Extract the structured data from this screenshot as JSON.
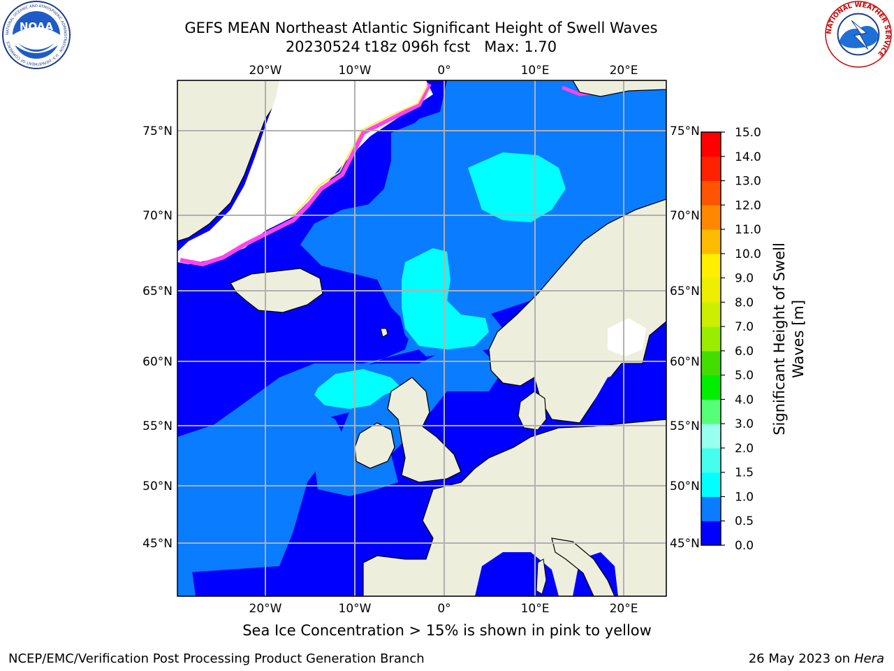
{
  "header": {
    "title": "GEFS MEAN Northeast Atlantic Significant Height of Swell Waves",
    "subtitle": "20230524 t18z 096h fcst   Max: 1.70"
  },
  "logos": {
    "left": {
      "text": "NOAA",
      "ring_text": "NATIONAL OCEANIC AND ATMOSPHERIC ADMINISTRATION · U.S. DEPARTMENT OF COMMERCE"
    },
    "right": {
      "ring_text": "NATIONAL WEATHER SERVICE"
    }
  },
  "map": {
    "lon_labels": [
      "20°W",
      "10°W",
      "0°",
      "10°E",
      "20°E"
    ],
    "lat_labels": [
      "75°N",
      "70°N",
      "65°N",
      "60°N",
      "55°N",
      "50°N",
      "45°N"
    ],
    "colors": {
      "ocean_low": "#0000ff",
      "ocean_mid": "#0a7cff",
      "ocean_high": "#00ffff",
      "land": "#eeeedd",
      "ice": "#ffffff",
      "ice_edge": "#ff44ee",
      "grid": "#b0b0b0"
    }
  },
  "colorbar": {
    "label": "Significant Height of Swell Waves [m]",
    "label_line1": "Significant Height of Swell",
    "label_line2": "Waves [m]",
    "ticks": [
      "15.0",
      "14.0",
      "13.0",
      "12.0",
      "11.0",
      "10.0",
      "9.0",
      "8.0",
      "7.0",
      "6.0",
      "5.0",
      "4.0",
      "3.0",
      "2.0",
      "1.5",
      "1.0",
      "0.5",
      "0.0"
    ],
    "colors_bottom_to_top": [
      "#0000ff",
      "#0a7cff",
      "#00ffff",
      "#44ffee",
      "#99ffee",
      "#55ff77",
      "#00ee00",
      "#44dd00",
      "#99ee00",
      "#ccee00",
      "#eeee00",
      "#ffee00",
      "#ffbb00",
      "#ff8800",
      "#ff5500",
      "#ff2200",
      "#ff0000"
    ]
  },
  "caption": "Sea Ice Concentration > 15% is shown in pink to yellow",
  "footer": {
    "left": "NCEP/EMC/Verification Post Processing Product Generation Branch",
    "right_date": "26 May 2023 on",
    "right_host": "Hera"
  }
}
